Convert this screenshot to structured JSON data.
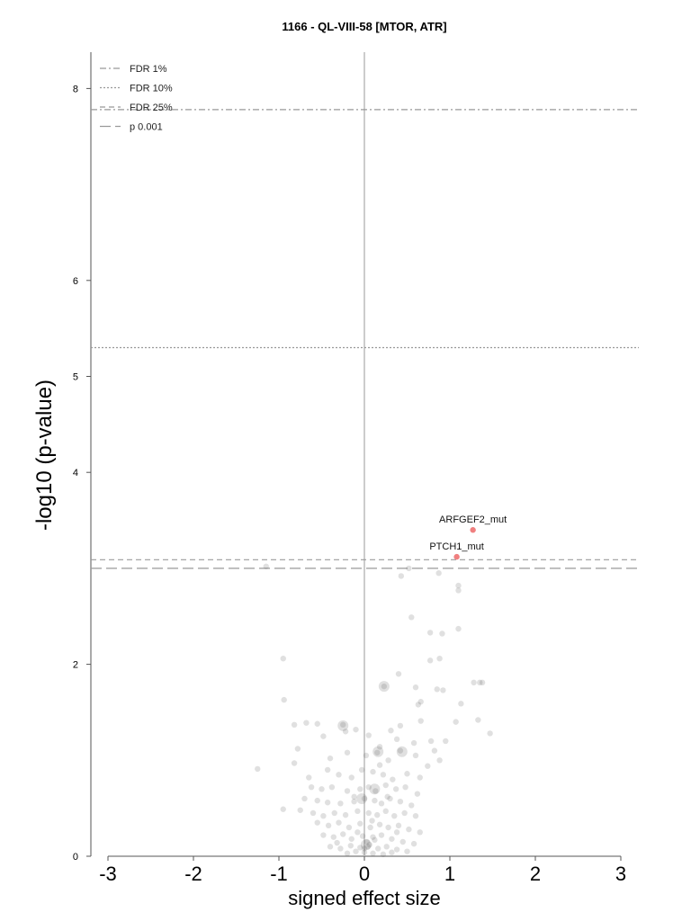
{
  "chart_data": {
    "type": "scatter",
    "title": "1166 - QL-VIII-58 [MTOR, ATR]",
    "xlabel": "signed effect size",
    "ylabel": "-log10 (p-value)",
    "xlim": [
      -3.2,
      3.2
    ],
    "ylim": [
      0,
      8.4
    ],
    "x_ticks": [
      "-3",
      "-2",
      "-1",
      "0",
      "1",
      "2",
      "3"
    ],
    "y_ticks": [
      "0",
      "2",
      "4",
      "5",
      "6",
      "8"
    ],
    "legend_position": "top-left",
    "thresholds": [
      {
        "name": "FDR 1%",
        "y": 7.78,
        "style": "dashdot",
        "color": "#999999"
      },
      {
        "name": "FDR 10%",
        "y": 5.3,
        "style": "dotted",
        "color": "#999999"
      },
      {
        "name": "FDR 25%",
        "y": 3.09,
        "style": "dashed",
        "color": "#999999"
      },
      {
        "name": "p 0.001",
        "y": 3.0,
        "style": "longdash",
        "color": "#999999"
      }
    ],
    "zero_line": {
      "x": 0,
      "color": "#bbbbbb"
    },
    "highlighted": [
      {
        "label": "ARFGEF2_mut",
        "x": 1.27,
        "y": 3.4,
        "color": "#f08080"
      },
      {
        "label": "PTCH1_mut",
        "x": 1.08,
        "y": 3.12,
        "color": "#f08080"
      }
    ],
    "points_color": "#555555",
    "points": [
      [
        -1.15,
        3.02
      ],
      [
        0.52,
        3.0
      ],
      [
        0.43,
        2.92
      ],
      [
        0.87,
        2.95
      ],
      [
        1.1,
        2.82
      ],
      [
        1.1,
        2.77
      ],
      [
        0.55,
        2.49
      ],
      [
        0.77,
        2.33
      ],
      [
        0.91,
        2.32
      ],
      [
        1.1,
        2.37
      ],
      [
        -0.95,
        2.06
      ],
      [
        0.77,
        2.04
      ],
      [
        0.88,
        2.06
      ],
      [
        0.4,
        1.9
      ],
      [
        0.23,
        1.77
      ],
      [
        0.6,
        1.76
      ],
      [
        0.85,
        1.74
      ],
      [
        0.92,
        1.73
      ],
      [
        1.28,
        1.81
      ],
      [
        1.35,
        1.81
      ],
      [
        1.38,
        1.81
      ],
      [
        -0.94,
        1.63
      ],
      [
        0.66,
        1.61
      ],
      [
        0.63,
        1.58
      ],
      [
        1.13,
        1.59
      ],
      [
        -0.82,
        1.37
      ],
      [
        -0.68,
        1.39
      ],
      [
        -0.55,
        1.38
      ],
      [
        -0.25,
        1.37
      ],
      [
        0.31,
        1.31
      ],
      [
        0.42,
        1.36
      ],
      [
        0.66,
        1.41
      ],
      [
        1.07,
        1.4
      ],
      [
        1.33,
        1.42
      ],
      [
        1.47,
        1.28
      ],
      [
        -0.48,
        1.25
      ],
      [
        -0.22,
        1.3
      ],
      [
        -0.1,
        1.32
      ],
      [
        0.05,
        1.26
      ],
      [
        0.18,
        1.14
      ],
      [
        0.38,
        1.22
      ],
      [
        0.58,
        1.18
      ],
      [
        0.78,
        1.2
      ],
      [
        0.95,
        1.2
      ],
      [
        -0.78,
        1.12
      ],
      [
        -0.4,
        1.02
      ],
      [
        -0.2,
        1.08
      ],
      [
        0.02,
        1.05
      ],
      [
        0.15,
        1.08
      ],
      [
        0.28,
        1.0
      ],
      [
        0.42,
        1.1
      ],
      [
        0.6,
        1.05
      ],
      [
        0.82,
        1.1
      ],
      [
        0.88,
        1.0
      ],
      [
        -1.25,
        0.91
      ],
      [
        -0.82,
        0.97
      ],
      [
        -0.65,
        0.82
      ],
      [
        -0.43,
        0.9
      ],
      [
        -0.3,
        0.85
      ],
      [
        -0.15,
        0.82
      ],
      [
        -0.03,
        0.9
      ],
      [
        0.1,
        0.88
      ],
      [
        0.22,
        0.85
      ],
      [
        0.33,
        0.8
      ],
      [
        0.5,
        0.86
      ],
      [
        0.65,
        0.82
      ],
      [
        0.74,
        0.94
      ],
      [
        -0.62,
        0.72
      ],
      [
        -0.5,
        0.7
      ],
      [
        -0.38,
        0.72
      ],
      [
        -0.2,
        0.68
      ],
      [
        -0.05,
        0.7
      ],
      [
        0.05,
        0.72
      ],
      [
        0.13,
        0.68
      ],
      [
        0.25,
        0.74
      ],
      [
        0.37,
        0.7
      ],
      [
        0.48,
        0.72
      ],
      [
        0.62,
        0.65
      ],
      [
        -0.7,
        0.6
      ],
      [
        -0.55,
        0.58
      ],
      [
        -0.43,
        0.56
      ],
      [
        -0.28,
        0.55
      ],
      [
        -0.12,
        0.57
      ],
      [
        0.0,
        0.6
      ],
      [
        0.12,
        0.58
      ],
      [
        0.2,
        0.55
      ],
      [
        0.3,
        0.6
      ],
      [
        0.42,
        0.57
      ],
      [
        0.55,
        0.53
      ],
      [
        -0.95,
        0.49
      ],
      [
        -0.75,
        0.48
      ],
      [
        -0.6,
        0.45
      ],
      [
        -0.48,
        0.42
      ],
      [
        -0.35,
        0.45
      ],
      [
        -0.22,
        0.43
      ],
      [
        -0.08,
        0.47
      ],
      [
        0.05,
        0.45
      ],
      [
        0.15,
        0.43
      ],
      [
        0.25,
        0.47
      ],
      [
        0.35,
        0.42
      ],
      [
        0.47,
        0.45
      ],
      [
        0.6,
        0.42
      ],
      [
        -0.55,
        0.35
      ],
      [
        -0.42,
        0.32
      ],
      [
        -0.3,
        0.35
      ],
      [
        -0.18,
        0.3
      ],
      [
        -0.05,
        0.34
      ],
      [
        0.07,
        0.3
      ],
      [
        0.18,
        0.33
      ],
      [
        0.28,
        0.3
      ],
      [
        0.4,
        0.32
      ],
      [
        0.52,
        0.28
      ],
      [
        0.65,
        0.25
      ],
      [
        -0.48,
        0.22
      ],
      [
        -0.36,
        0.2
      ],
      [
        -0.25,
        0.23
      ],
      [
        -0.15,
        0.18
      ],
      [
        -0.02,
        0.21
      ],
      [
        0.1,
        0.2
      ],
      [
        0.2,
        0.22
      ],
      [
        0.32,
        0.18
      ],
      [
        0.45,
        0.15
      ],
      [
        0.58,
        0.13
      ],
      [
        -0.4,
        0.1
      ],
      [
        -0.28,
        0.08
      ],
      [
        -0.16,
        0.11
      ],
      [
        -0.05,
        0.09
      ],
      [
        0.06,
        0.12
      ],
      [
        0.16,
        0.08
      ],
      [
        0.26,
        0.1
      ],
      [
        0.38,
        0.07
      ],
      [
        0.5,
        0.05
      ],
      [
        -0.2,
        0.03
      ],
      [
        -0.1,
        0.05
      ],
      [
        0.0,
        0.04
      ],
      [
        0.1,
        0.03
      ],
      [
        0.22,
        0.02
      ],
      [
        0.32,
        0.04
      ],
      [
        0.03,
        0.15
      ],
      [
        -0.08,
        0.25
      ],
      [
        0.09,
        0.37
      ],
      [
        -0.12,
        0.62
      ],
      [
        0.18,
        0.95
      ],
      [
        0.27,
        0.62
      ],
      [
        -0.32,
        0.14
      ],
      [
        0.38,
        0.25
      ],
      [
        0.0,
        0.08
      ],
      [
        0.04,
        0.1
      ],
      [
        0.12,
        0.17
      ]
    ],
    "points_large": [
      [
        0.23,
        1.77
      ],
      [
        0.16,
        1.09
      ],
      [
        0.12,
        0.7
      ],
      [
        -0.03,
        0.6
      ],
      [
        0.02,
        0.12
      ],
      [
        -0.25,
        1.36
      ],
      [
        0.44,
        1.09
      ]
    ]
  }
}
